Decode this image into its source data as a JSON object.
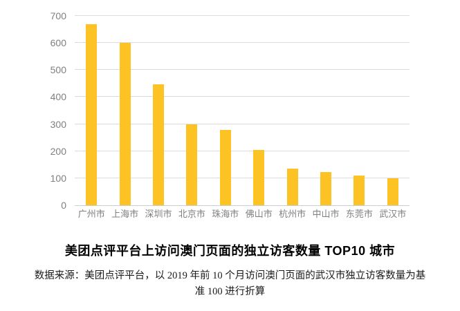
{
  "chart_data": {
    "type": "bar",
    "title": "美团点评平台上访问澳门页面的独立访客数量 TOP10 城市",
    "categories": [
      "广州市",
      "上海市",
      "深圳市",
      "北京市",
      "珠海市",
      "佛山市",
      "杭州市",
      "中山市",
      "东莞市",
      "武汉市"
    ],
    "values": [
      670,
      600,
      448,
      298,
      278,
      205,
      135,
      122,
      110,
      100
    ],
    "xlabel": "",
    "ylabel": "",
    "ylim": [
      0,
      700
    ],
    "yticks": [
      0,
      100,
      200,
      300,
      400,
      500,
      600,
      700
    ],
    "grid": true,
    "legend_position": "none",
    "source_lines": [
      "数据来源：美团点评平台，以 2019 年前 10 个月访问澳门页面的武汉市独立访客数量为基",
      "准 100 进行折算"
    ]
  },
  "colors": {
    "bar": "#FDC324",
    "gridline": "#DCDCDC",
    "baseline": "#C9CDD4",
    "axis_label": "#7F7F7F",
    "title": "#000000",
    "source_text": "#1A1A1A",
    "background": "#FFFFFF"
  }
}
